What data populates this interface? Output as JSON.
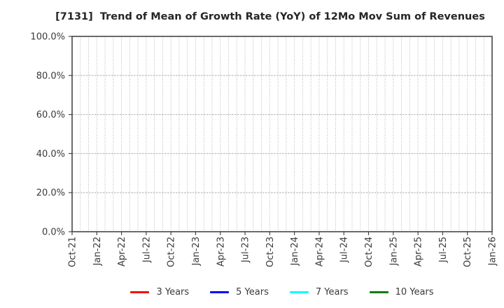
{
  "chart_data": {
    "type": "line",
    "title": "[7131]  Trend of Mean of Growth Rate (YoY) of 12Mo Mov Sum of Revenues",
    "x_tick_labels": [
      "Oct-21",
      "Jan-22",
      "Apr-22",
      "Jul-22",
      "Oct-22",
      "Jan-23",
      "Apr-23",
      "Jul-23",
      "Oct-23",
      "Jan-24",
      "Apr-24",
      "Jul-24",
      "Oct-24",
      "Jan-25",
      "Apr-25",
      "Jul-25",
      "Oct-25",
      "Jan-26"
    ],
    "y_tick_values": [
      0,
      20,
      40,
      60,
      80,
      100
    ],
    "y_tick_labels": [
      "0.0%",
      "20.0%",
      "40.0%",
      "60.0%",
      "80.0%",
      "100.0%"
    ],
    "ylim": [
      0,
      100
    ],
    "grid": true,
    "x_minor_gridlines_per_interval": 3,
    "legend_position": "bottom",
    "series": [
      {
        "name": "3 Years",
        "color": "#ff0000",
        "values": []
      },
      {
        "name": "5 Years",
        "color": "#0000ff",
        "values": []
      },
      {
        "name": "7 Years",
        "color": "#00ffff",
        "values": []
      },
      {
        "name": "10 Years",
        "color": "#008000",
        "values": []
      }
    ],
    "colors": {
      "grid": "#b0b0b0",
      "axis": "#3a3a3a",
      "tick_text": "#3a3a3a",
      "title_text": "#262626",
      "background": "#ffffff"
    }
  }
}
